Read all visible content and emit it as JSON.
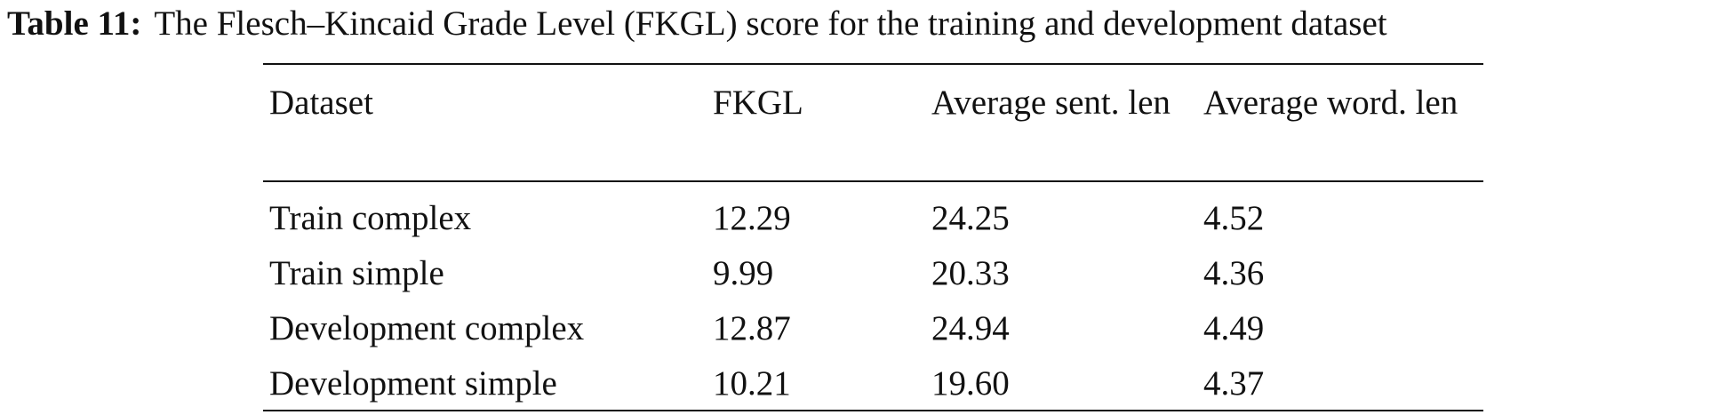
{
  "caption": {
    "label": "Table 11:",
    "text": "The Flesch–Kincaid Grade Level (FKGL) score for the training and development dataset"
  },
  "table": {
    "header": [
      "Dataset",
      "FKGL",
      "Average sent. len",
      "Average word. len"
    ],
    "rows": [
      [
        "Train complex",
        "12.29",
        "24.25",
        "4.52"
      ],
      [
        "Train simple",
        "9.99",
        "20.33",
        "4.36"
      ],
      [
        "Development complex",
        "12.87",
        "24.94",
        "4.49"
      ],
      [
        "Development simple",
        "10.21",
        "19.60",
        "4.37"
      ]
    ]
  }
}
